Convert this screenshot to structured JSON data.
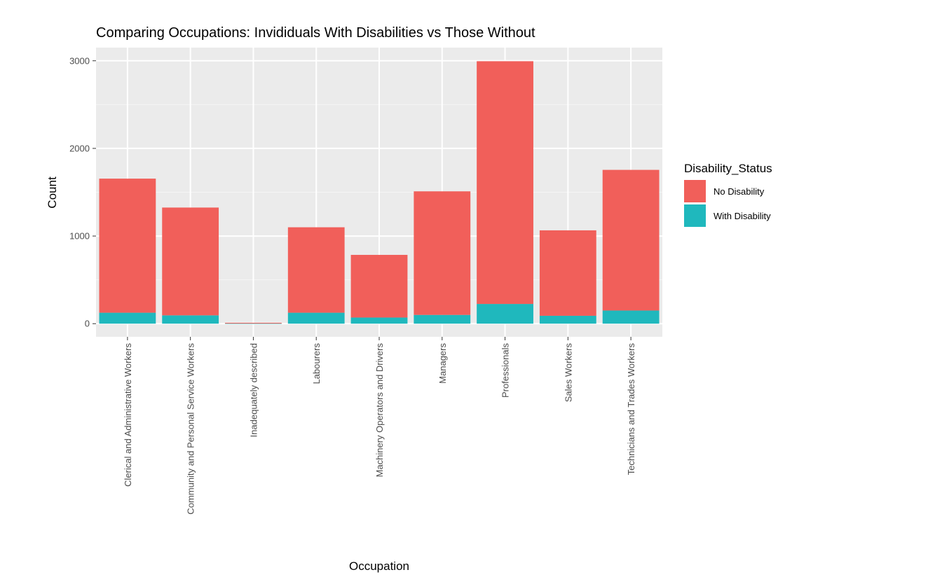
{
  "chart_data": {
    "type": "bar",
    "stacked": true,
    "title": "Comparing Occupations: Invididuals With Disabilities vs Those Without",
    "xlabel": "Occupation",
    "ylabel": "Count",
    "ylim": [
      -150,
      3150
    ],
    "yticks": [
      0,
      1000,
      2000,
      3000
    ],
    "grid": true,
    "legend_position": "right",
    "legend_title": "Disability_Status",
    "categories": [
      "Clerical and Administrative Workers",
      "Community and Personal Service Workers",
      "Inadequately described",
      "Labourers",
      "Machinery Operators and Drivers",
      "Managers",
      "Professionals",
      "Sales Workers",
      "Technicians and Trades Workers"
    ],
    "series": [
      {
        "name": "With Disability",
        "color": "#1FB8BD",
        "values": [
          125,
          95,
          2,
          125,
          70,
          100,
          225,
          90,
          150
        ]
      },
      {
        "name": "No Disability",
        "color": "#F15F5A",
        "values": [
          1530,
          1230,
          8,
          975,
          715,
          1410,
          2770,
          975,
          1605
        ]
      }
    ],
    "legend_order": [
      "No Disability",
      "With Disability"
    ]
  }
}
